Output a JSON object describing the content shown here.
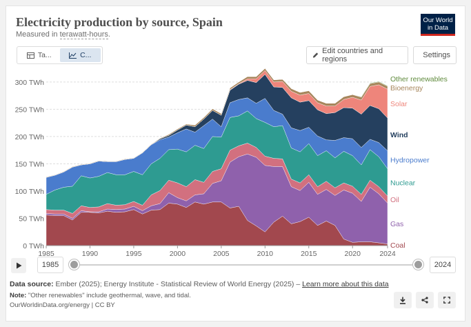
{
  "header": {
    "title": "Electricity production by source, Spain",
    "subtitle_prefix": "Measured in ",
    "subtitle_unit": "terawatt-hours",
    "subtitle_suffix": "."
  },
  "logo": {
    "line1": "Our World",
    "line2": "in Data"
  },
  "tabs": [
    {
      "label": "Ta...",
      "icon": "table-icon"
    },
    {
      "label": "C...",
      "icon": "chart-icon"
    }
  ],
  "toolbar": {
    "edit_label": "Edit countries and regions",
    "settings_label": "Settings"
  },
  "timeline": {
    "start_year": "1985",
    "end_year": "2024"
  },
  "footer": {
    "source_label": "Data source:",
    "source_text": "Ember (2025); Energy Institute - Statistical Review of World Energy (2025) – ",
    "source_link": "Learn more about this data",
    "note_label": "Note:",
    "note_text": "\"Other renewables\" include geothermal, wave, and tidal.",
    "credit": "OurWorldinData.org/energy | CC BY"
  },
  "chart_data": {
    "type": "area",
    "stacked": true,
    "x": [
      1985,
      1986,
      1987,
      1988,
      1989,
      1990,
      1991,
      1992,
      1993,
      1994,
      1995,
      1996,
      1997,
      1998,
      1999,
      2000,
      2001,
      2002,
      2003,
      2004,
      2005,
      2006,
      2007,
      2008,
      2009,
      2010,
      2011,
      2012,
      2013,
      2014,
      2015,
      2016,
      2017,
      2018,
      2019,
      2020,
      2021,
      2022,
      2023,
      2024
    ],
    "xticks": [
      1985,
      1990,
      1995,
      2000,
      2005,
      2010,
      2015,
      2020,
      2024
    ],
    "yticks": [
      0,
      50,
      100,
      150,
      200,
      250,
      300
    ],
    "ytick_labels": [
      "0 TWh",
      "50 TWh",
      "100 TWh",
      "150 TWh",
      "200 TWh",
      "250 TWh",
      "300 TWh"
    ],
    "ylim": [
      0,
      310
    ],
    "series": [
      {
        "name": "Coal",
        "color": "#a2484e",
        "values": [
          56,
          55,
          55,
          47,
          61,
          61,
          60,
          63,
          61,
          62,
          66,
          58,
          65,
          66,
          78,
          76,
          70,
          80,
          76,
          80,
          80,
          69,
          72,
          46,
          36,
          25,
          43,
          54,
          40,
          44,
          52,
          37,
          45,
          37,
          12,
          6,
          7,
          7,
          5,
          3
        ]
      },
      {
        "name": "Gas",
        "color": "#8f61ac",
        "values": [
          3,
          3,
          3,
          3,
          3,
          1,
          2,
          4,
          5,
          5,
          6,
          6,
          8,
          11,
          19,
          12,
          12,
          13,
          19,
          34,
          39,
          84,
          91,
          122,
          126,
          122,
          102,
          91,
          68,
          57,
          64,
          57,
          58,
          55,
          90,
          90,
          74,
          100,
          90,
          75
        ]
      },
      {
        "name": "Oil",
        "color": "#d2707f",
        "values": [
          7,
          7,
          7,
          9,
          9,
          8,
          9,
          10,
          8,
          8,
          9,
          10,
          20,
          24,
          23,
          27,
          26,
          28,
          21,
          22,
          22,
          22,
          20,
          20,
          18,
          17,
          15,
          14,
          14,
          14,
          14,
          14,
          15,
          14,
          13,
          13,
          13,
          13,
          13,
          13
        ]
      },
      {
        "name": "Nuclear",
        "color": "#2e9b91",
        "values": [
          28,
          37,
          42,
          50,
          55,
          54,
          56,
          57,
          56,
          55,
          55,
          56,
          57,
          59,
          56,
          62,
          64,
          63,
          62,
          64,
          58,
          60,
          55,
          59,
          53,
          62,
          58,
          61,
          57,
          57,
          57,
          57,
          56,
          55,
          58,
          56,
          54,
          56,
          55,
          50
        ]
      },
      {
        "name": "Hydropower",
        "color": "#4a7ccd",
        "values": [
          31,
          27,
          28,
          35,
          20,
          26,
          28,
          20,
          24,
          28,
          24,
          40,
          35,
          34,
          23,
          30,
          42,
          24,
          42,
          32,
          19,
          27,
          30,
          24,
          28,
          44,
          30,
          21,
          37,
          39,
          30,
          36,
          20,
          32,
          25,
          31,
          32,
          19,
          26,
          33
        ]
      },
      {
        "name": "Wind",
        "color": "#25405f",
        "values": [
          0,
          0,
          0,
          0,
          0,
          0,
          0,
          0,
          0,
          0,
          0,
          0,
          0,
          2,
          3,
          5,
          7,
          10,
          12,
          16,
          21,
          23,
          28,
          32,
          38,
          44,
          43,
          49,
          55,
          52,
          49,
          48,
          48,
          51,
          55,
          56,
          61,
          62,
          62,
          60
        ]
      },
      {
        "name": "Solar",
        "color": "#ee857b",
        "values": [
          0,
          0,
          0,
          0,
          0,
          0,
          0,
          0,
          0,
          0,
          0,
          0,
          0,
          0,
          0,
          0,
          0,
          0,
          0,
          0,
          0,
          1,
          1,
          3,
          7,
          7,
          9,
          11,
          12,
          13,
          13,
          13,
          14,
          12,
          15,
          20,
          26,
          35,
          44,
          53
        ]
      },
      {
        "name": "Bioenergy",
        "color": "#a7865c",
        "values": [
          1,
          1,
          1,
          1,
          1,
          1,
          1,
          1,
          1,
          1,
          1,
          1,
          1,
          1,
          2,
          2,
          2,
          3,
          3,
          3,
          3,
          3,
          3,
          4,
          4,
          4,
          4,
          4,
          5,
          5,
          5,
          5,
          5,
          5,
          5,
          5,
          5,
          5,
          5,
          5
        ]
      },
      {
        "name": "Other renewables",
        "color": "#5f8a3c",
        "values": [
          0,
          0,
          0,
          0,
          0,
          0,
          0,
          0,
          0,
          0,
          0,
          0,
          0,
          0,
          0,
          0,
          0,
          0,
          0,
          0,
          0,
          0,
          0,
          0,
          0,
          0,
          0,
          0,
          0,
          0,
          0,
          0,
          0,
          0,
          0,
          0,
          1,
          1,
          1,
          1
        ]
      }
    ],
    "legend_placement": "right"
  }
}
